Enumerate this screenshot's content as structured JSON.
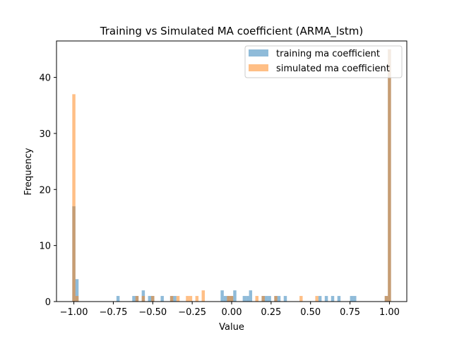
{
  "chart_data": {
    "type": "histogram",
    "title": "Training vs Simulated MA coefficient (ARMA_lstm)",
    "xlabel": "Value",
    "ylabel": "Frequency",
    "xlim": [
      -1.11,
      1.11
    ],
    "ylim": [
      0,
      46.5
    ],
    "xticks": [
      -1.0,
      -0.75,
      -0.5,
      -0.25,
      0.0,
      0.25,
      0.5,
      0.75,
      1.0
    ],
    "xtick_labels": [
      "−1.00",
      "−0.75",
      "−0.50",
      "−0.25",
      "0.00",
      "0.25",
      "0.50",
      "0.75",
      "1.00"
    ],
    "yticks": [
      0,
      10,
      20,
      30,
      40
    ],
    "ytick_labels": [
      "0",
      "10",
      "20",
      "30",
      "40"
    ],
    "bin_width": 0.02,
    "grid": false,
    "legend_position": "top-right",
    "series": [
      {
        "name": "training ma coefficient",
        "color": "#1f77b4",
        "alpha": 0.5,
        "bins": [
          {
            "x": -1.0,
            "count": 17
          },
          {
            "x": -0.98,
            "count": 4
          },
          {
            "x": -0.72,
            "count": 1
          },
          {
            "x": -0.62,
            "count": 1
          },
          {
            "x": -0.6,
            "count": 1
          },
          {
            "x": -0.56,
            "count": 2
          },
          {
            "x": -0.52,
            "count": 1
          },
          {
            "x": -0.5,
            "count": 1
          },
          {
            "x": -0.44,
            "count": 1
          },
          {
            "x": -0.38,
            "count": 1
          },
          {
            "x": -0.36,
            "count": 1
          },
          {
            "x": -0.06,
            "count": 2
          },
          {
            "x": -0.04,
            "count": 1
          },
          {
            "x": -0.02,
            "count": 1
          },
          {
            "x": 0.0,
            "count": 1
          },
          {
            "x": 0.02,
            "count": 2
          },
          {
            "x": 0.08,
            "count": 1
          },
          {
            "x": 0.1,
            "count": 1
          },
          {
            "x": 0.12,
            "count": 2
          },
          {
            "x": 0.2,
            "count": 1
          },
          {
            "x": 0.22,
            "count": 1
          },
          {
            "x": 0.24,
            "count": 1
          },
          {
            "x": 0.28,
            "count": 1
          },
          {
            "x": 0.3,
            "count": 1
          },
          {
            "x": 0.34,
            "count": 1
          },
          {
            "x": 0.56,
            "count": 1
          },
          {
            "x": 0.6,
            "count": 1
          },
          {
            "x": 0.64,
            "count": 1
          },
          {
            "x": 0.68,
            "count": 1
          },
          {
            "x": 0.76,
            "count": 1
          },
          {
            "x": 0.78,
            "count": 1
          },
          {
            "x": 0.98,
            "count": 1
          },
          {
            "x": 1.0,
            "count": 45
          }
        ]
      },
      {
        "name": "simulated ma coefficient",
        "color": "#ff7f0e",
        "alpha": 0.5,
        "bins": [
          {
            "x": -1.0,
            "count": 37
          },
          {
            "x": -0.98,
            "count": 1
          },
          {
            "x": -0.6,
            "count": 1
          },
          {
            "x": -0.56,
            "count": 1
          },
          {
            "x": -0.5,
            "count": 1
          },
          {
            "x": -0.38,
            "count": 1
          },
          {
            "x": -0.34,
            "count": 1
          },
          {
            "x": -0.28,
            "count": 1
          },
          {
            "x": -0.26,
            "count": 1
          },
          {
            "x": -0.22,
            "count": 1
          },
          {
            "x": -0.18,
            "count": 2
          },
          {
            "x": -0.02,
            "count": 1
          },
          {
            "x": 0.0,
            "count": 1
          },
          {
            "x": 0.16,
            "count": 1
          },
          {
            "x": 0.2,
            "count": 1
          },
          {
            "x": 0.28,
            "count": 1
          },
          {
            "x": 0.44,
            "count": 1
          },
          {
            "x": 0.54,
            "count": 1
          },
          {
            "x": 0.98,
            "count": 1
          },
          {
            "x": 1.0,
            "count": 45
          }
        ]
      }
    ]
  }
}
